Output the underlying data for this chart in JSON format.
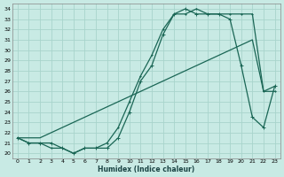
{
  "xlabel": "Humidex (Indice chaleur)",
  "bg_color": "#c8eae4",
  "grid_color": "#a8d4cc",
  "line_color": "#1a6655",
  "xlim": [
    -0.5,
    23.5
  ],
  "ylim": [
    19.5,
    34.5
  ],
  "xticks": [
    0,
    1,
    2,
    3,
    4,
    5,
    6,
    7,
    8,
    9,
    10,
    11,
    12,
    13,
    14,
    15,
    16,
    17,
    18,
    19,
    20,
    21,
    22,
    23
  ],
  "yticks": [
    20,
    21,
    22,
    23,
    24,
    25,
    26,
    27,
    28,
    29,
    30,
    31,
    32,
    33,
    34
  ],
  "curve1_x": [
    0,
    1,
    2,
    3,
    4,
    5,
    6,
    7,
    8,
    9,
    10,
    11,
    12,
    13,
    14,
    15,
    16,
    17,
    18,
    19,
    20,
    21,
    22,
    23
  ],
  "curve1_y": [
    21.5,
    21.0,
    21.0,
    21.0,
    20.5,
    20.0,
    20.5,
    20.5,
    20.5,
    21.5,
    24.0,
    27.0,
    28.5,
    31.5,
    33.5,
    34.0,
    33.5,
    33.5,
    33.5,
    33.0,
    28.5,
    23.5,
    22.5,
    26.5
  ],
  "curve2_x": [
    0,
    1,
    2,
    3,
    4,
    5,
    6,
    7,
    8,
    9,
    10,
    11,
    12,
    13,
    14,
    15,
    16,
    17,
    18,
    19,
    20,
    21,
    22,
    23
  ],
  "curve2_y": [
    21.5,
    21.0,
    21.0,
    20.5,
    20.5,
    20.0,
    20.5,
    20.5,
    21.0,
    22.5,
    25.0,
    27.5,
    29.5,
    32.0,
    33.5,
    33.5,
    34.0,
    33.5,
    33.5,
    33.5,
    33.5,
    33.5,
    26.0,
    26.0
  ],
  "curve3_x": [
    0,
    1,
    2,
    3,
    4,
    5,
    6,
    7,
    8,
    9,
    10,
    11,
    12,
    13,
    14,
    15,
    16,
    17,
    18,
    19,
    20,
    21,
    22,
    23
  ],
  "curve3_y": [
    21.5,
    21.5,
    21.5,
    22.0,
    22.5,
    23.0,
    23.5,
    24.0,
    24.5,
    25.0,
    25.5,
    26.0,
    26.5,
    27.0,
    27.5,
    28.0,
    28.5,
    29.0,
    29.5,
    30.0,
    30.5,
    31.0,
    26.0,
    26.5
  ]
}
